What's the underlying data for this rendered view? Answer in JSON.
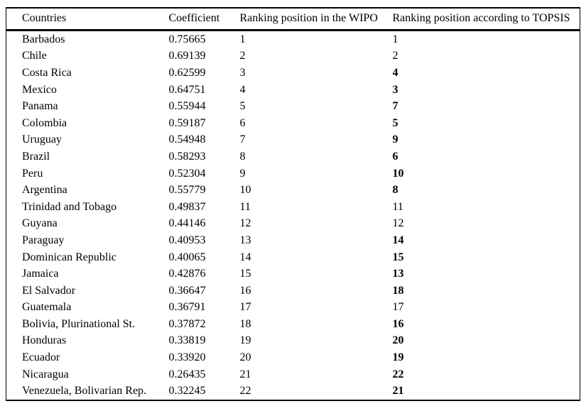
{
  "table": {
    "columns": [
      "Countries",
      "Coefficient",
      "Ranking position in the WIPO",
      "Ranking position according to TOPSIS"
    ],
    "rows": [
      {
        "country": "Barbados",
        "coefficient": "0.75665",
        "wipo": "1",
        "topsis": "1",
        "topsis_bold": false
      },
      {
        "country": "Chile",
        "coefficient": "0.69139",
        "wipo": "2",
        "topsis": "2",
        "topsis_bold": false
      },
      {
        "country": "Costa Rica",
        "coefficient": "0.62599",
        "wipo": "3",
        "topsis": "4",
        "topsis_bold": true
      },
      {
        "country": "Mexico",
        "coefficient": "0.64751",
        "wipo": "4",
        "topsis": "3",
        "topsis_bold": true
      },
      {
        "country": "Panama",
        "coefficient": "0.55944",
        "wipo": "5",
        "topsis": "7",
        "topsis_bold": true
      },
      {
        "country": "Colombia",
        "coefficient": "0.59187",
        "wipo": "6",
        "topsis": "5",
        "topsis_bold": true
      },
      {
        "country": "Uruguay",
        "coefficient": "0.54948",
        "wipo": "7",
        "topsis": "9",
        "topsis_bold": true
      },
      {
        "country": "Brazil",
        "coefficient": "0.58293",
        "wipo": "8",
        "topsis": "6",
        "topsis_bold": true
      },
      {
        "country": "Peru",
        "coefficient": "0.52304",
        "wipo": "9",
        "topsis": "10",
        "topsis_bold": true
      },
      {
        "country": "Argentina",
        "coefficient": "0.55779",
        "wipo": "10",
        "topsis": "8",
        "topsis_bold": true
      },
      {
        "country": "Trinidad and Tobago",
        "coefficient": "0.49837",
        "wipo": "11",
        "topsis": "11",
        "topsis_bold": false
      },
      {
        "country": "Guyana",
        "coefficient": "0.44146",
        "wipo": "12",
        "topsis": "12",
        "topsis_bold": false
      },
      {
        "country": "Paraguay",
        "coefficient": "0.40953",
        "wipo": "13",
        "topsis": "14",
        "topsis_bold": true
      },
      {
        "country": "Dominican Republic",
        "coefficient": "0.40065",
        "wipo": "14",
        "topsis": "15",
        "topsis_bold": true
      },
      {
        "country": "Jamaica",
        "coefficient": "0.42876",
        "wipo": "15",
        "topsis": "13",
        "topsis_bold": true
      },
      {
        "country": "El Salvador",
        "coefficient": "0.36647",
        "wipo": "16",
        "topsis": "18",
        "topsis_bold": true
      },
      {
        "country": "Guatemala",
        "coefficient": "0.36791",
        "wipo": "17",
        "topsis": "17",
        "topsis_bold": false
      },
      {
        "country": "Bolivia, Plurinational St.",
        "coefficient": "0.37872",
        "wipo": "18",
        "topsis": "16",
        "topsis_bold": true
      },
      {
        "country": "Honduras",
        "coefficient": "0.33819",
        "wipo": "19",
        "topsis": "20",
        "topsis_bold": true
      },
      {
        "country": "Ecuador",
        "coefficient": "0.33920",
        "wipo": "20",
        "topsis": "19",
        "topsis_bold": true
      },
      {
        "country": "Nicaragua",
        "coefficient": "0.26435",
        "wipo": "21",
        "topsis": "22",
        "topsis_bold": true
      },
      {
        "country": "Venezuela, Bolivarian Rep.",
        "coefficient": "0.32245",
        "wipo": "22",
        "topsis": "21",
        "topsis_bold": true
      }
    ]
  }
}
